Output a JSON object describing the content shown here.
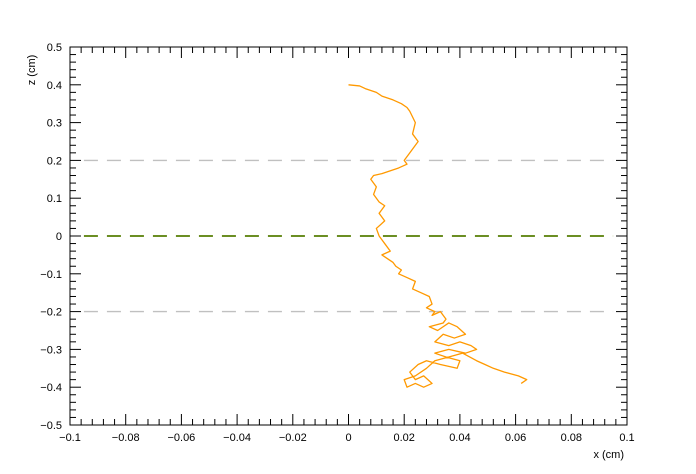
{
  "chart_data": {
    "type": "line",
    "title": "",
    "xlabel": "x (cm)",
    "ylabel": "z (cm)",
    "xlim": [
      -0.1,
      0.1
    ],
    "ylim": [
      -0.5,
      0.5
    ],
    "x_ticks": [
      -0.1,
      -0.08,
      -0.06,
      -0.04,
      -0.02,
      0,
      0.02,
      0.04,
      0.06,
      0.08,
      0.1
    ],
    "x_tick_labels": [
      "−0.1",
      "−0.08",
      "−0.06",
      "−0.04",
      "−0.02",
      "0",
      "0.02",
      "0.04",
      "0.06",
      "0.08",
      "0.1"
    ],
    "y_ticks": [
      -0.5,
      -0.4,
      -0.3,
      -0.2,
      -0.1,
      0,
      0.1,
      0.2,
      0.3,
      0.4,
      0.5
    ],
    "y_tick_labels": [
      "−0.5",
      "−0.4",
      "−0.3",
      "−0.2",
      "−0.1",
      "0",
      "0.1",
      "0.2",
      "0.3",
      "0.4",
      "0.5"
    ],
    "grid": false,
    "reference_lines": [
      {
        "z": 0.2,
        "x_range": [
          -0.095,
          0.095
        ],
        "color": "#c0c0c0",
        "style": "dashed"
      },
      {
        "z": -0.2,
        "x_range": [
          -0.095,
          0.095
        ],
        "color": "#c0c0c0",
        "style": "dashed"
      },
      {
        "z": 0.0,
        "x_range": [
          -0.095,
          0.095
        ],
        "color": "#6b8e23",
        "style": "dashed"
      }
    ],
    "series": [
      {
        "color": "#ff9900",
        "x": [
          0.0,
          0.004,
          0.006,
          0.01,
          0.012,
          0.016,
          0.019,
          0.021,
          0.022,
          0.024,
          0.023,
          0.025,
          0.022,
          0.02,
          0.021,
          0.018,
          0.016,
          0.014,
          0.012,
          0.009,
          0.008,
          0.01,
          0.009,
          0.011,
          0.013,
          0.011,
          0.013,
          0.01,
          0.011,
          0.013,
          0.015,
          0.012,
          0.016,
          0.017,
          0.019,
          0.018,
          0.021,
          0.024,
          0.023,
          0.026,
          0.029,
          0.03,
          0.028,
          0.031,
          0.03,
          0.033,
          0.035,
          0.034,
          0.029,
          0.032,
          0.036,
          0.039,
          0.042,
          0.038,
          0.034,
          0.031,
          0.036,
          0.04,
          0.044,
          0.046,
          0.042,
          0.036,
          0.031,
          0.035,
          0.04,
          0.039,
          0.033,
          0.028,
          0.025,
          0.022,
          0.024,
          0.027,
          0.03,
          0.027,
          0.024,
          0.021,
          0.02,
          0.024,
          0.028,
          0.031,
          0.036,
          0.041,
          0.046,
          0.049,
          0.052,
          0.056,
          0.061,
          0.064,
          0.062
        ],
        "y": [
          0.4,
          0.397,
          0.39,
          0.38,
          0.37,
          0.36,
          0.35,
          0.34,
          0.33,
          0.3,
          0.27,
          0.25,
          0.22,
          0.2,
          0.19,
          0.18,
          0.175,
          0.17,
          0.165,
          0.16,
          0.15,
          0.13,
          0.11,
          0.09,
          0.08,
          0.06,
          0.04,
          0.02,
          0.0,
          -0.02,
          -0.04,
          -0.05,
          -0.07,
          -0.08,
          -0.09,
          -0.1,
          -0.11,
          -0.12,
          -0.14,
          -0.15,
          -0.16,
          -0.18,
          -0.19,
          -0.2,
          -0.21,
          -0.2,
          -0.22,
          -0.23,
          -0.24,
          -0.25,
          -0.23,
          -0.24,
          -0.26,
          -0.27,
          -0.26,
          -0.28,
          -0.29,
          -0.28,
          -0.29,
          -0.3,
          -0.31,
          -0.3,
          -0.31,
          -0.32,
          -0.33,
          -0.35,
          -0.34,
          -0.33,
          -0.34,
          -0.36,
          -0.38,
          -0.37,
          -0.39,
          -0.4,
          -0.39,
          -0.4,
          -0.38,
          -0.37,
          -0.35,
          -0.33,
          -0.32,
          -0.31,
          -0.33,
          -0.34,
          -0.35,
          -0.36,
          -0.37,
          -0.38,
          -0.39
        ]
      }
    ]
  }
}
